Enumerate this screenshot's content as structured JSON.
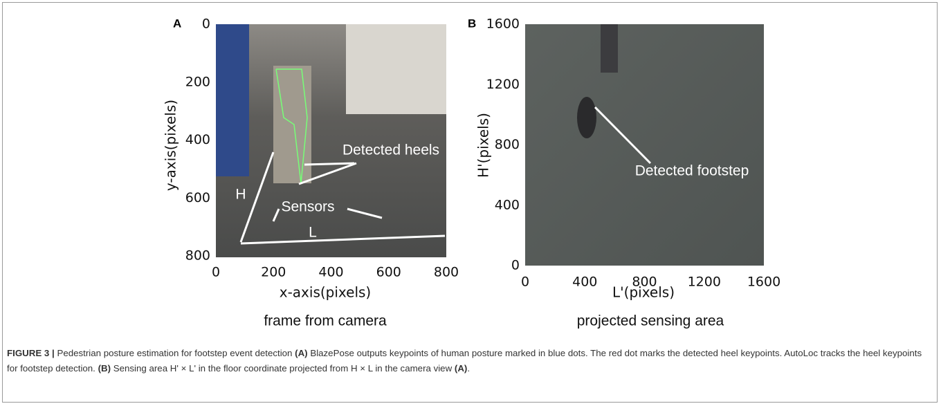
{
  "panels": [
    {
      "label": "A",
      "xticks": [
        "0",
        "200",
        "400",
        "600",
        "800"
      ],
      "yticks": [
        "0",
        "200",
        "400",
        "600",
        "800"
      ],
      "xlabel": "x-axis(pixels)",
      "ylabel": "y-axis(pixels)",
      "subtitle": "frame from camera",
      "annotations": [
        "Detected heels",
        "Sensors",
        "H",
        "L"
      ]
    },
    {
      "label": "B",
      "xticks": [
        "0",
        "400",
        "800",
        "1200",
        "1600"
      ],
      "yticks": [
        "1600",
        "1200",
        "800",
        "400",
        "0"
      ],
      "xlabel": "L'(pixels)",
      "ylabel": "H'(pixels)",
      "subtitle": "projected sensing area",
      "annotations": [
        "Detected footstep"
      ]
    }
  ],
  "caption": {
    "parts": [
      {
        "text": "FIGURE 3 |",
        "bold": true
      },
      {
        "text": " Pedestrian posture estimation for footstep event detection ",
        "bold": false
      },
      {
        "text": "(A)",
        "bold": true
      },
      {
        "text": " BlazePose outputs keypoints of human posture marked in blue dots. The red dot marks the detected heel keypoints. AutoLoc tracks the heel keypoints for footstep detection. ",
        "bold": false
      },
      {
        "text": "(B)",
        "bold": true
      },
      {
        "text": " Sensing area H' × L' in the floor coordinate projected from H × L in the camera view ",
        "bold": false
      },
      {
        "text": "(A)",
        "bold": true
      },
      {
        "text": ".",
        "bold": false
      }
    ]
  }
}
